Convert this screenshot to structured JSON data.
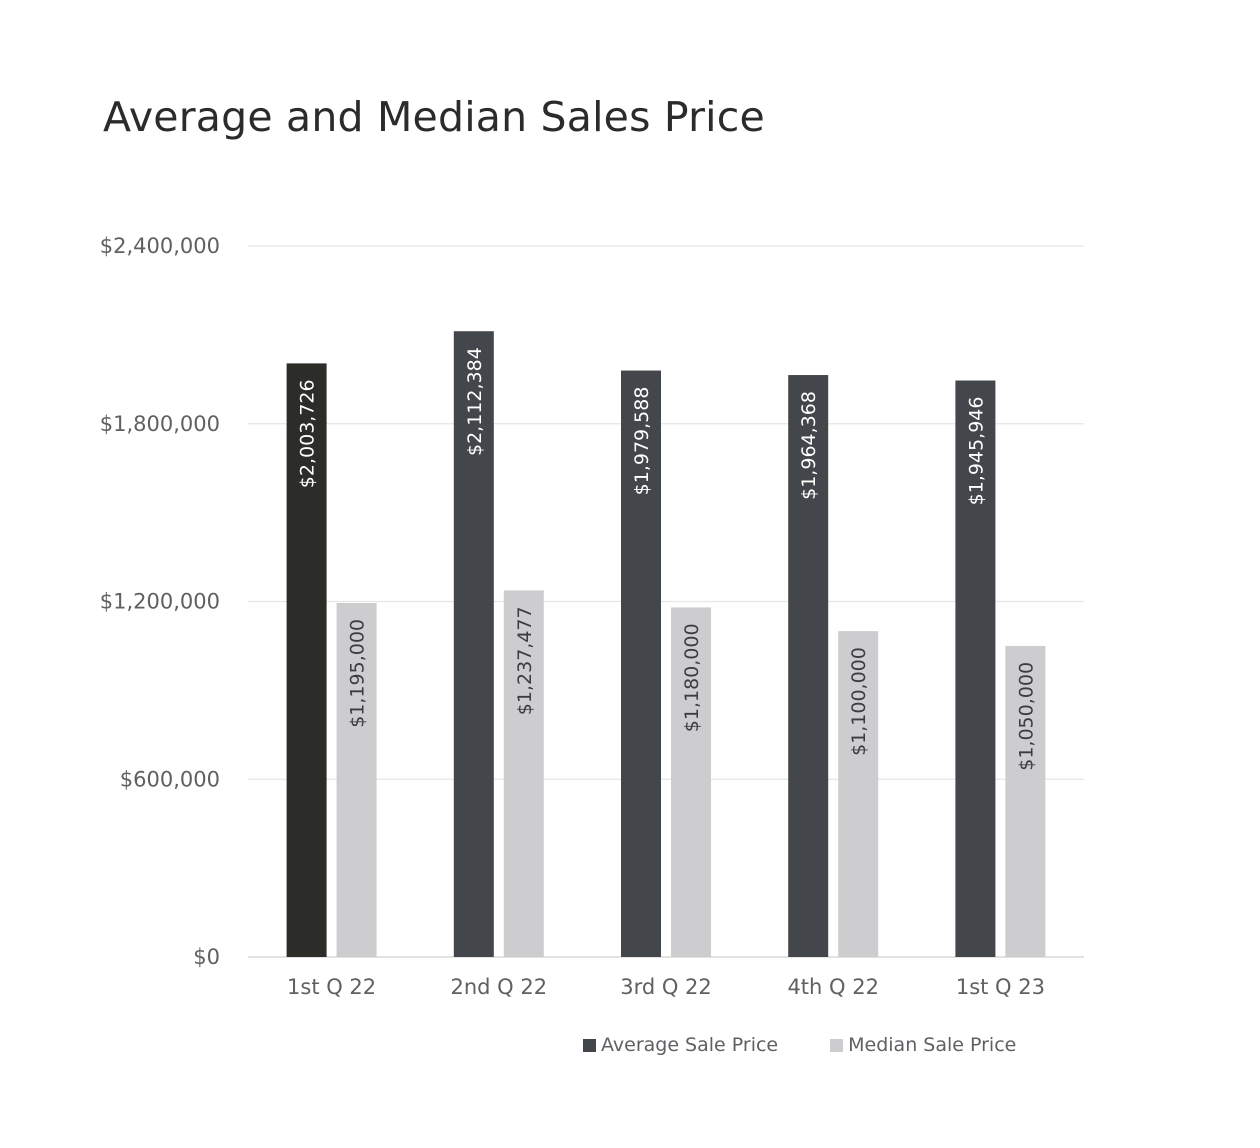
{
  "chart_data": {
    "type": "bar",
    "title": "Average and Median Sales Price",
    "categories": [
      "1st Q 22",
      "2nd Q 22",
      "3rd Q 22",
      "4th Q 22",
      "1st Q 23"
    ],
    "series": [
      {
        "name": "Average Sale Price",
        "values": [
          2003726,
          2112384,
          1979588,
          1964368,
          1945946
        ],
        "labels": [
          "$2,003,726",
          "$2,112,384",
          "$1,979,588",
          "$1,964,368",
          "$1,945,946"
        ],
        "color": "#43464a",
        "highlight_color": "#2c2d28"
      },
      {
        "name": "Median Sale Price",
        "values": [
          1195000,
          1237477,
          1180000,
          1100000,
          1050000
        ],
        "labels": [
          "$1,195,000",
          "$1,237,477",
          "$1,180,000",
          "$1,100,000",
          "$1,050,000"
        ],
        "color": "#cdcdcf"
      }
    ],
    "ylim": [
      0,
      2400000
    ],
    "yticks": [
      0,
      600000,
      1200000,
      1800000,
      2400000
    ],
    "ytick_labels": [
      "$0",
      "$600,000",
      "$1,200,000",
      "$1,800,000",
      "$2,400,000"
    ],
    "grid": true,
    "legend": "bottom-right",
    "label_color_on_dark": "#ffffff",
    "label_color_on_light": "#3b3c40",
    "gridline_color": "#e6e6e6"
  }
}
